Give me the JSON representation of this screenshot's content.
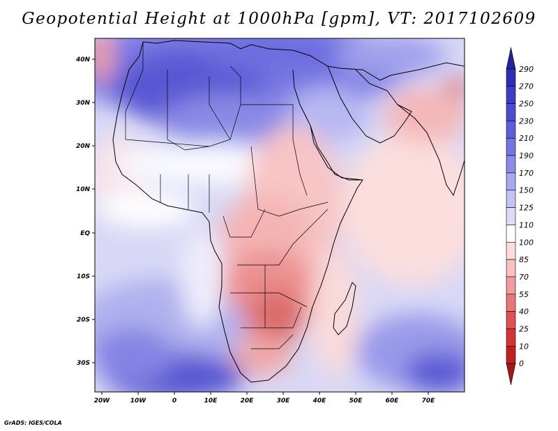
{
  "title": "Geopotential Height at 1000hPa [gpm], VT: 2017102609",
  "credit": "GrADS: IGES/COLA",
  "map": {
    "variable": "Geopotential Height",
    "level": "1000hPa",
    "units": "gpm",
    "valid_time": "2017102609",
    "lon_labels": [
      "20W",
      "10W",
      "0",
      "10E",
      "20E",
      "30E",
      "40E",
      "50E",
      "60E",
      "70E"
    ],
    "lat_labels": [
      "40N",
      "30N",
      "20N",
      "10N",
      "EQ",
      "10S",
      "20S",
      "30S"
    ]
  },
  "colorbar": {
    "levels": [
      "290",
      "270",
      "250",
      "230",
      "210",
      "190",
      "170",
      "150",
      "125",
      "110",
      "100",
      "85",
      "70",
      "55",
      "40",
      "25",
      "10",
      "0"
    ],
    "colors": [
      "#24249a",
      "#2d2db8",
      "#3c3cc8",
      "#4b4bd4",
      "#5e5edc",
      "#7474e2",
      "#8c8ce8",
      "#a8a8ee",
      "#c4c4f4",
      "#dcdcf8",
      "#ffffff",
      "#fcdcdc",
      "#f8c0c0",
      "#f09c9c",
      "#e87878",
      "#e05050",
      "#d83232",
      "#c02020",
      "#a01818"
    ]
  }
}
